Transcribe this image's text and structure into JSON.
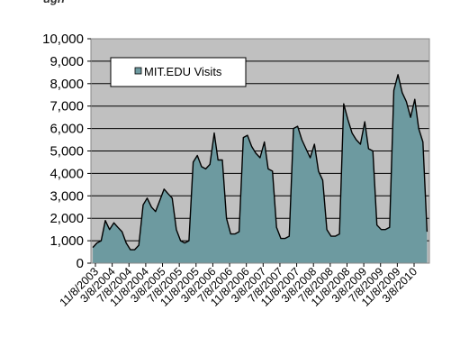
{
  "header": {
    "partial_title": "ugh"
  },
  "colors": {
    "plot_bg": "#c0c0c0",
    "area_fill": "#6d9aa0",
    "line": "#000000",
    "frame": "#888888"
  },
  "chart_data": {
    "type": "area",
    "title": "",
    "xlabel": "",
    "ylabel": "",
    "ylim": [
      0,
      10000
    ],
    "yticks": [
      0,
      1000,
      2000,
      3000,
      4000,
      5000,
      6000,
      7000,
      8000,
      9000,
      10000
    ],
    "ytick_labels": [
      "0",
      "1,000",
      "2,000",
      "3,000",
      "4,000",
      "5,000",
      "6,000",
      "7,000",
      "8,000",
      "9,000",
      "10,000"
    ],
    "xlim": [
      "2003-09-01",
      "2010-06-01"
    ],
    "xtick_labels": [
      "11/8/2003",
      "3/8/2004",
      "7/8/2004",
      "11/8/2004",
      "3/8/2005",
      "7/8/2005",
      "11/8/2005",
      "3/8/2006",
      "7/8/2006",
      "11/8/2006",
      "3/8/2007",
      "7/8/2007",
      "11/8/2007",
      "3/8/2008",
      "7/8/2008",
      "11/8/2008",
      "3/8/2009",
      "7/8/2009",
      "11/8/2009",
      "3/8/2010"
    ],
    "grid": "horizontal",
    "legend_position": "top-left",
    "series": [
      {
        "name": "MIT.EDU Visits",
        "x": [
          "2003-09-15",
          "2003-10-15",
          "2003-11-15",
          "2003-12-15",
          "2004-01-15",
          "2004-02-15",
          "2004-03-15",
          "2004-04-15",
          "2004-05-15",
          "2004-06-15",
          "2004-07-15",
          "2004-08-15",
          "2004-09-15",
          "2004-10-15",
          "2004-11-15",
          "2004-12-15",
          "2005-01-15",
          "2005-02-15",
          "2005-03-15",
          "2005-04-15",
          "2005-05-15",
          "2005-06-15",
          "2005-07-15",
          "2005-08-15",
          "2005-09-15",
          "2005-10-15",
          "2005-11-15",
          "2005-12-15",
          "2006-01-15",
          "2006-02-15",
          "2006-03-15",
          "2006-04-15",
          "2006-05-15",
          "2006-06-15",
          "2006-07-15",
          "2006-08-15",
          "2006-09-15",
          "2006-10-15",
          "2006-11-15",
          "2006-12-15",
          "2007-01-15",
          "2007-02-15",
          "2007-03-15",
          "2007-04-15",
          "2007-05-15",
          "2007-06-15",
          "2007-07-15",
          "2007-08-15",
          "2007-09-15",
          "2007-10-15",
          "2007-11-15",
          "2007-12-15",
          "2008-01-15",
          "2008-02-15",
          "2008-03-15",
          "2008-04-15",
          "2008-05-15",
          "2008-06-15",
          "2008-07-15",
          "2008-08-15",
          "2008-09-15",
          "2008-10-15",
          "2008-11-15",
          "2008-12-15",
          "2009-01-15",
          "2009-02-15",
          "2009-03-15",
          "2009-04-15",
          "2009-05-15",
          "2009-06-15",
          "2009-07-15",
          "2009-08-15",
          "2009-09-15",
          "2009-10-15",
          "2009-11-15",
          "2009-12-15",
          "2010-01-15",
          "2010-02-15",
          "2010-03-15",
          "2010-04-15",
          "2010-05-15"
        ],
        "y": [
          700,
          900,
          1000,
          1900,
          1500,
          1800,
          1600,
          1400,
          900,
          600,
          600,
          800,
          2600,
          2900,
          2500,
          2300,
          2800,
          3300,
          3100,
          2900,
          1500,
          1000,
          900,
          1000,
          4500,
          4800,
          4300,
          4200,
          4400,
          5800,
          4600,
          4600,
          2000,
          1300,
          1300,
          1400,
          5600,
          5700,
          5200,
          4900,
          4700,
          5400,
          4200,
          4100,
          1600,
          1100,
          1100,
          1200,
          6000,
          6100,
          5500,
          5100,
          4700,
          5300,
          4100,
          3700,
          1500,
          1200,
          1200,
          1300,
          7100,
          6400,
          5800,
          5500,
          5300,
          6300,
          5100,
          5000,
          1700,
          1500,
          1500,
          1600,
          7700,
          8400,
          7600,
          7200,
          6500,
          7300,
          6000,
          5400,
          1400
        ]
      }
    ]
  }
}
